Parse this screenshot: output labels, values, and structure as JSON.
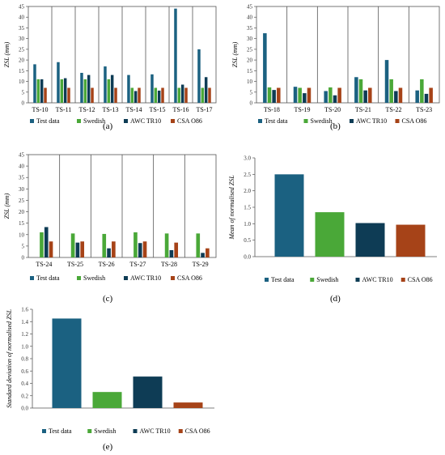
{
  "colors": {
    "test": "#1b6181",
    "swedish": "#4aa838",
    "awc": "#0e3c55",
    "csa": "#a64318"
  },
  "legend": [
    "Test data",
    "Swedish",
    "AWC TR10",
    "CSA O86"
  ],
  "chart_data": [
    {
      "type": "bar",
      "panel": "(a)",
      "ylabel": "ZSL (mm)",
      "ylim": [
        0,
        45
      ],
      "yticks": [
        0,
        5,
        10,
        15,
        20,
        25,
        30,
        35,
        40,
        45
      ],
      "categories": [
        "TS-10",
        "TS-11",
        "TS-12",
        "TS-13",
        "TS-14",
        "TS-15",
        "TS-16",
        "TS-17"
      ],
      "series": [
        {
          "name": "Test data",
          "values": [
            18,
            19,
            14,
            17,
            13,
            13.3,
            44,
            25
          ]
        },
        {
          "name": "Swedish",
          "values": [
            11,
            11,
            11,
            11,
            7,
            7,
            7,
            7
          ]
        },
        {
          "name": "AWC TR10",
          "values": [
            11,
            11.5,
            13,
            13,
            5.5,
            5.7,
            8.5,
            12
          ]
        },
        {
          "name": "CSA O86",
          "values": [
            7,
            7,
            7,
            7,
            7,
            7,
            7,
            7
          ]
        }
      ]
    },
    {
      "type": "bar",
      "panel": "(b)",
      "ylabel": "ZSL (mm)",
      "ylim": [
        0,
        45
      ],
      "yticks": [
        0,
        5,
        10,
        15,
        20,
        25,
        30,
        35,
        40,
        45
      ],
      "categories": [
        "TS-18",
        "TS-19",
        "TS-20",
        "TS-21",
        "TS-22",
        "TS-23"
      ],
      "series": [
        {
          "name": "Test data",
          "values": [
            32.5,
            7.5,
            5.5,
            12,
            20,
            5.8
          ]
        },
        {
          "name": "Swedish",
          "values": [
            7.2,
            7,
            7.2,
            11,
            11,
            11
          ]
        },
        {
          "name": "AWC TR10",
          "values": [
            6,
            4.5,
            3.5,
            5.8,
            5.5,
            4.2
          ]
        },
        {
          "name": "CSA O86",
          "values": [
            7,
            7,
            7,
            7,
            7,
            7
          ]
        }
      ]
    },
    {
      "type": "bar",
      "panel": "(c)",
      "ylabel": "ZSL (mm)",
      "ylim": [
        0,
        45
      ],
      "yticks": [
        0,
        5,
        10,
        15,
        20,
        25,
        30,
        35,
        40,
        45
      ],
      "categories": [
        "TS-24",
        "TS-25",
        "TS-26",
        "TS-27",
        "TS-28",
        "TS-29"
      ],
      "series": [
        {
          "name": "Test data",
          "values": [
            0,
            0,
            0,
            0,
            0,
            0
          ]
        },
        {
          "name": "Swedish",
          "values": [
            11,
            10.5,
            10.3,
            11,
            10.5,
            10.5
          ]
        },
        {
          "name": "AWC TR10",
          "values": [
            13.3,
            6.5,
            4,
            6.3,
            3.2,
            2
          ]
        },
        {
          "name": "CSA O86",
          "values": [
            7,
            7,
            7,
            7,
            6.5,
            4
          ]
        }
      ]
    },
    {
      "type": "bar",
      "panel": "(d)",
      "ylabel": "Mean of normalised  ZSL",
      "ylim": [
        0,
        3
      ],
      "yticks": [
        0.0,
        0.5,
        1.0,
        1.5,
        2.0,
        2.5,
        3.0
      ],
      "categories": [
        "Test data",
        "Swedish",
        "AWC TR10",
        "CSA O86"
      ],
      "values": [
        2.5,
        1.35,
        1.02,
        0.97
      ]
    },
    {
      "type": "bar",
      "panel": "(e)",
      "ylabel": "Standard deviation of normalised  ZSL",
      "ylim": [
        0,
        1.6
      ],
      "yticks": [
        0.0,
        0.2,
        0.4,
        0.6,
        0.8,
        1.0,
        1.2,
        1.4,
        1.6
      ],
      "categories": [
        "Test data",
        "Swedish",
        "AWC TR10",
        "CSA O86"
      ],
      "values": [
        1.45,
        0.26,
        0.51,
        0.09
      ]
    }
  ]
}
